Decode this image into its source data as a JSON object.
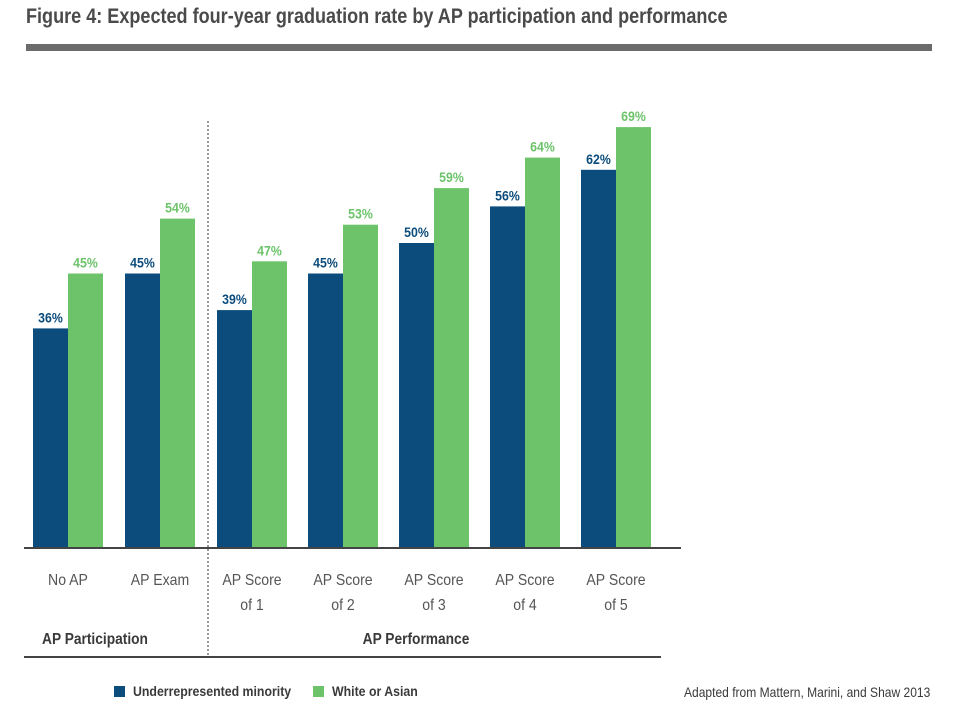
{
  "title": "Figure 4: Expected four-year graduation rate by AP participation and performance",
  "source": "Adapted from Mattern, Marini, and Shaw 2013",
  "colors": {
    "minority": "#0b4c7c",
    "white_asian": "#6cc36a",
    "title_rule": "#6b6b6b",
    "axis": "#444444"
  },
  "chart_data": {
    "type": "bar",
    "categories": [
      [
        "No AP"
      ],
      [
        "AP Exam"
      ],
      [
        "AP Score",
        "of 1"
      ],
      [
        "AP Score",
        "of 2"
      ],
      [
        "AP Score",
        "of 3"
      ],
      [
        "AP Score",
        "of 4"
      ],
      [
        "AP Score",
        "of 5"
      ]
    ],
    "series": [
      {
        "name": "Underrepresented minority",
        "values": [
          36,
          45,
          39,
          45,
          50,
          56,
          62
        ],
        "labels": [
          "36%",
          "45%",
          "39%",
          "45%",
          "50%",
          "56%",
          "62%"
        ]
      },
      {
        "name": "White or Asian",
        "values": [
          45,
          54,
          47,
          53,
          59,
          64,
          69
        ],
        "labels": [
          "45%",
          "54%",
          "47%",
          "53%",
          "59%",
          "64%",
          "69%"
        ]
      }
    ],
    "groups": [
      {
        "label": "AP Participation",
        "categories": [
          0,
          1
        ]
      },
      {
        "label": "AP Performance",
        "categories": [
          2,
          3,
          4,
          5,
          6
        ]
      }
    ],
    "ylim": [
      0,
      75
    ],
    "grid": false,
    "legend_position": "bottom-left"
  }
}
